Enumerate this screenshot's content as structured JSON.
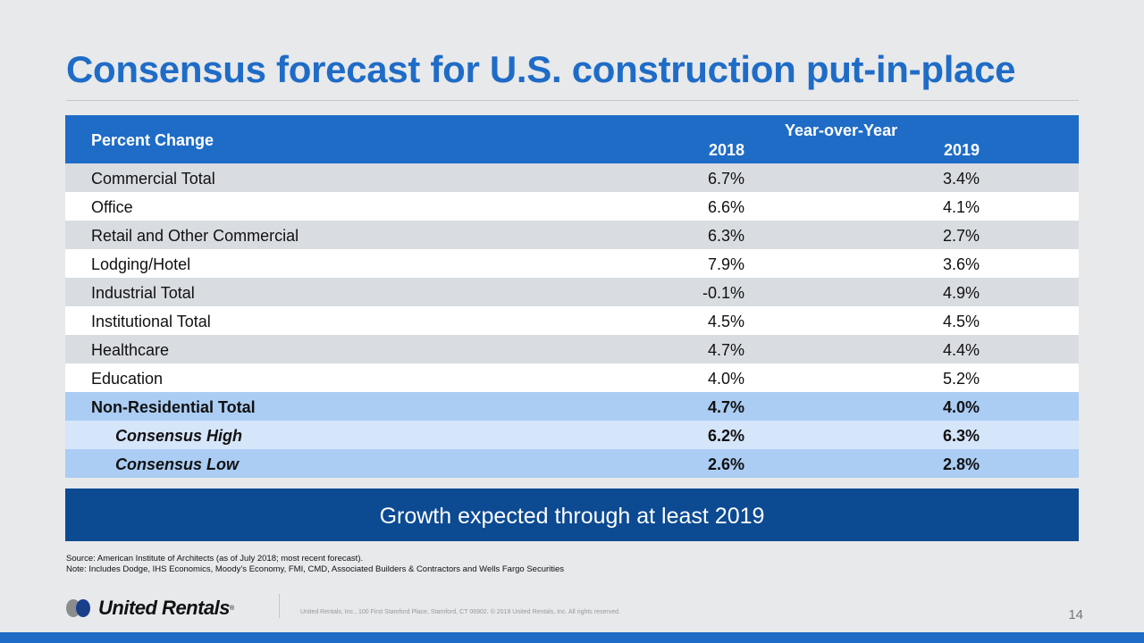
{
  "title": "Consensus forecast for U.S. construction put-in-place",
  "table": {
    "header": {
      "row_label": "Percent Change",
      "group": "Year-over-Year",
      "col1": "2018",
      "col2": "2019"
    },
    "rows": [
      {
        "label": "Commercial Total",
        "v2018": "6.7%",
        "v2019": "3.4%"
      },
      {
        "label": "Office",
        "v2018": "6.6%",
        "v2019": "4.1%"
      },
      {
        "label": "Retail and Other Commercial",
        "v2018": "6.3%",
        "v2019": "2.7%"
      },
      {
        "label": "Lodging/Hotel",
        "v2018": "7.9%",
        "v2019": "3.6%"
      },
      {
        "label": "Industrial Total",
        "v2018": "-0.1%",
        "v2019": "4.9%"
      },
      {
        "label": "Institutional Total",
        "v2018": "4.5%",
        "v2019": "4.5%"
      },
      {
        "label": "Healthcare",
        "v2018": "4.7%",
        "v2019": "4.4%"
      },
      {
        "label": "Education",
        "v2018": "4.0%",
        "v2019": "5.2%"
      },
      {
        "label": "Non-Residential Total",
        "v2018": "4.7%",
        "v2019": "4.0%"
      },
      {
        "label": "Consensus High",
        "v2018": "6.2%",
        "v2019": "6.3%"
      },
      {
        "label": "Consensus Low",
        "v2018": "2.6%",
        "v2019": "2.8%"
      }
    ]
  },
  "banner": "Growth expected through at least 2019",
  "source": "Source: American Institute of Architects (as of July 2018; most recent forecast).",
  "note": "Note: Includes Dodge, IHS Economics, Moody’s Economy, FMI, CMD, Associated Builders & Contractors and Wells Fargo Securities",
  "logo": "United Rentals",
  "footer": "United Rentals, Inc., 100 First Stamford Place, Stamford, CT 06902. © 2018 United Rentals, Inc. All rights reserved.",
  "page_number": "14",
  "colors": {
    "brand": "#1f6cc7",
    "banner": "#0c4a92"
  }
}
